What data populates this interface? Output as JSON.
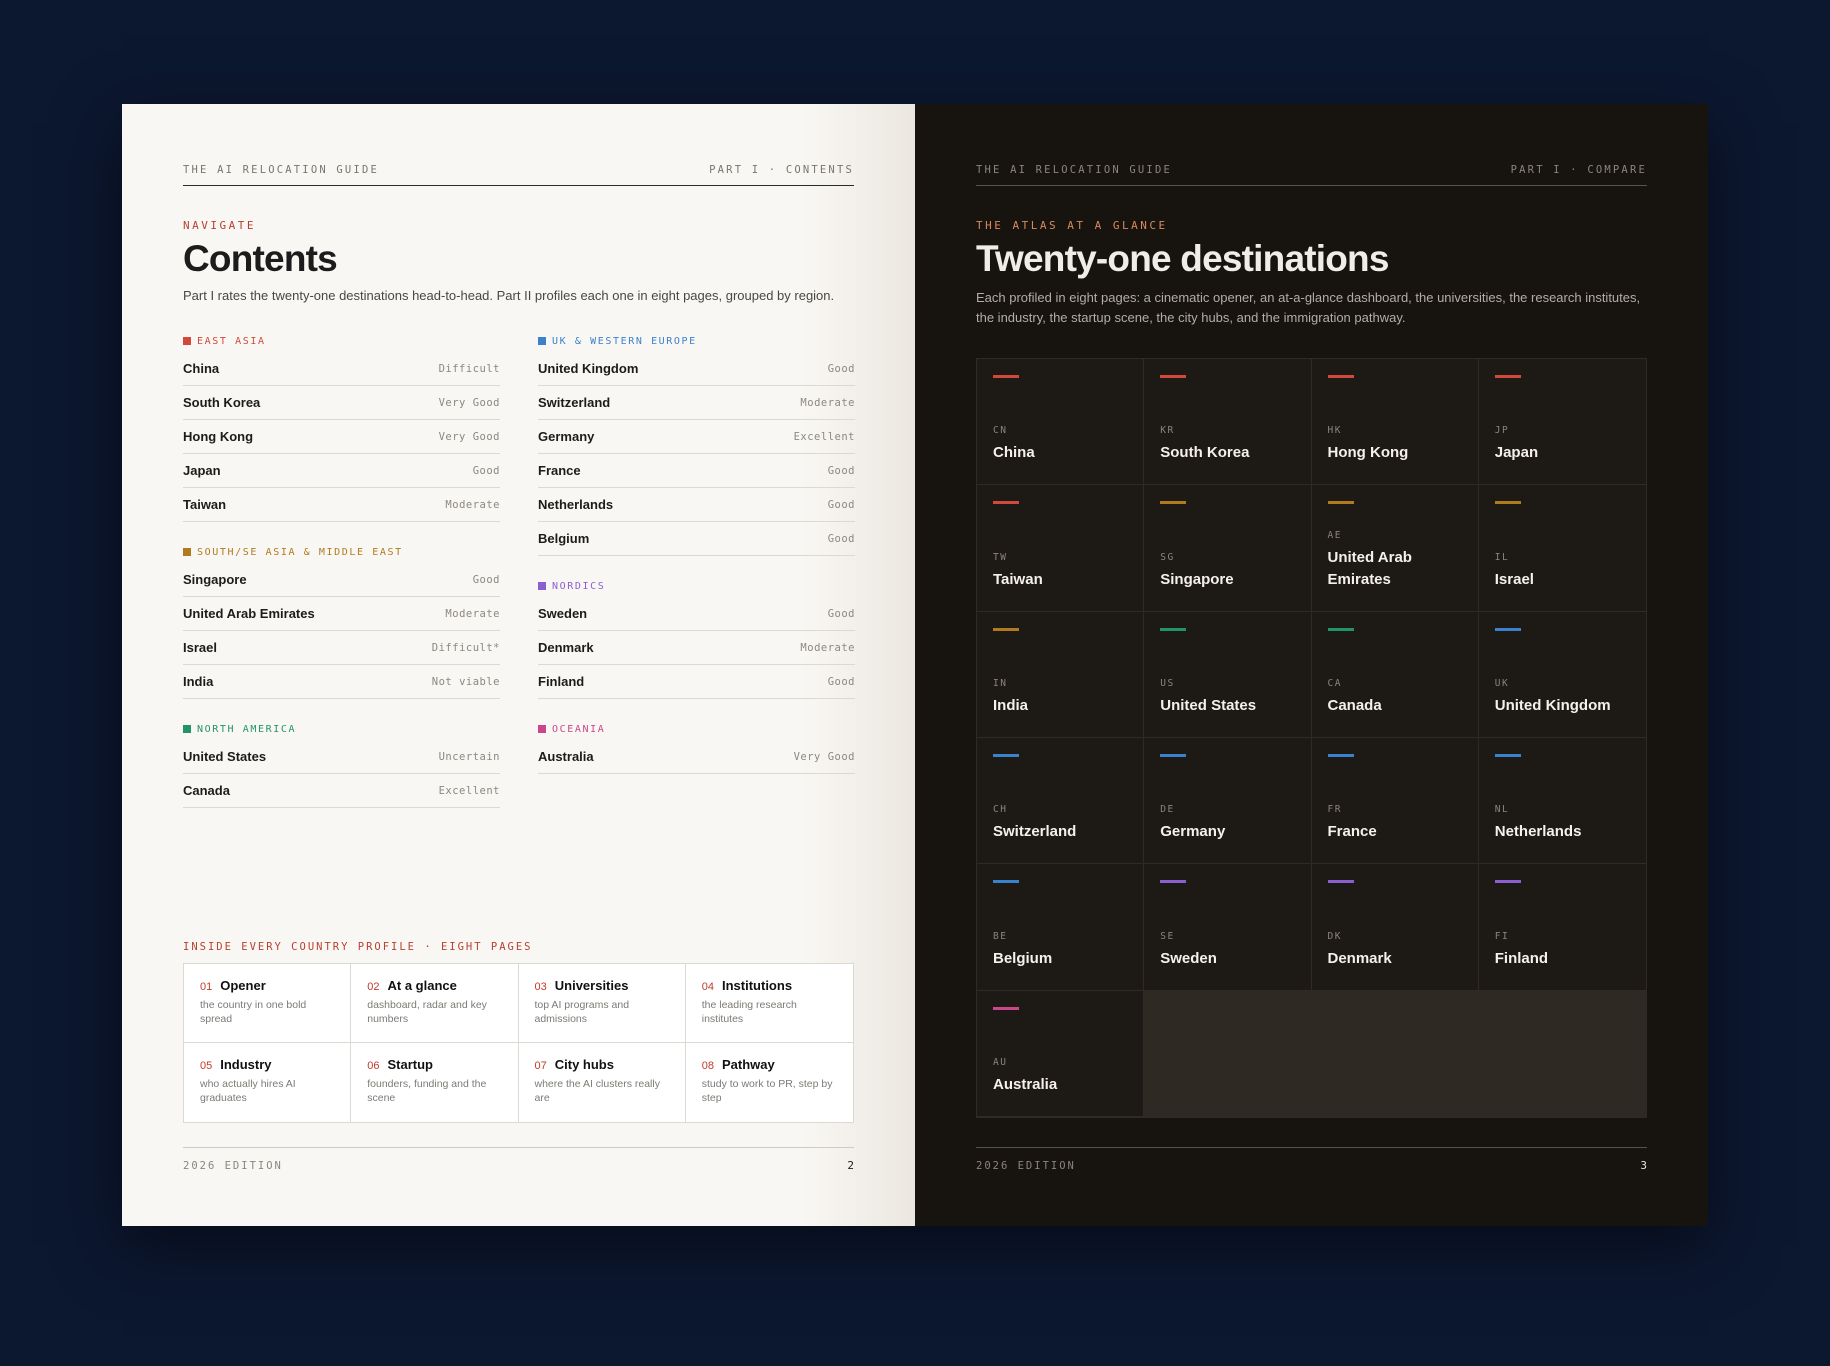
{
  "left": {
    "header": {
      "brand": "THE AI RELOCATION GUIDE",
      "part": "PART I · CONTENTS"
    },
    "kicker": "NAVIGATE",
    "title": "Contents",
    "lead": "Part I rates the twenty-one destinations head-to-head. Part II profiles each one in eight pages, grouped by region.",
    "groups": [
      {
        "name": "EAST ASIA",
        "color": "#d0493a",
        "items": [
          {
            "country": "China",
            "rating": "Difficult"
          },
          {
            "country": "South Korea",
            "rating": "Very Good"
          },
          {
            "country": "Hong Kong",
            "rating": "Very Good"
          },
          {
            "country": "Japan",
            "rating": "Good"
          },
          {
            "country": "Taiwan",
            "rating": "Moderate"
          }
        ]
      },
      {
        "name": "SOUTH/SE ASIA & MIDDLE EAST",
        "color": "#b07a1e",
        "items": [
          {
            "country": "Singapore",
            "rating": "Good"
          },
          {
            "country": "United Arab Emirates",
            "rating": "Moderate"
          },
          {
            "country": "Israel",
            "rating": "Difficult*"
          },
          {
            "country": "India",
            "rating": "Not viable"
          }
        ]
      },
      {
        "name": "NORTH AMERICA",
        "color": "#23936a",
        "items": [
          {
            "country": "United States",
            "rating": "Uncertain"
          },
          {
            "country": "Canada",
            "rating": "Excellent"
          }
        ]
      },
      {
        "name": "UK & WESTERN EUROPE",
        "color": "#3a82cc",
        "items": [
          {
            "country": "United Kingdom",
            "rating": "Good"
          },
          {
            "country": "Switzerland",
            "rating": "Moderate"
          },
          {
            "country": "Germany",
            "rating": "Excellent"
          },
          {
            "country": "France",
            "rating": "Good"
          },
          {
            "country": "Netherlands",
            "rating": "Good"
          },
          {
            "country": "Belgium",
            "rating": "Good"
          }
        ]
      },
      {
        "name": "NORDICS",
        "color": "#8a5fd0",
        "items": [
          {
            "country": "Sweden",
            "rating": "Good"
          },
          {
            "country": "Denmark",
            "rating": "Moderate"
          },
          {
            "country": "Finland",
            "rating": "Good"
          }
        ]
      },
      {
        "name": "OCEANIA",
        "color": "#c9478a",
        "items": [
          {
            "country": "Australia",
            "rating": "Very Good"
          }
        ]
      }
    ],
    "profile_label": "INSIDE EVERY COUNTRY PROFILE · EIGHT PAGES",
    "profile": [
      {
        "num": "01",
        "name": "Opener",
        "desc": "the country in one bold spread"
      },
      {
        "num": "02",
        "name": "At a glance",
        "desc": "dashboard, radar and key numbers"
      },
      {
        "num": "03",
        "name": "Universities",
        "desc": "top AI programs and admissions"
      },
      {
        "num": "04",
        "name": "Institutions",
        "desc": "the leading research institutes"
      },
      {
        "num": "05",
        "name": "Industry",
        "desc": "who actually hires AI graduates"
      },
      {
        "num": "06",
        "name": "Startup",
        "desc": "founders, funding and the scene"
      },
      {
        "num": "07",
        "name": "City hubs",
        "desc": "where the AI clusters really are"
      },
      {
        "num": "08",
        "name": "Pathway",
        "desc": "study to work to PR, step by step"
      }
    ],
    "footer": {
      "edition": "2026 EDITION",
      "page": "2"
    }
  },
  "right": {
    "header": {
      "brand": "THE AI RELOCATION GUIDE",
      "part": "PART I · COMPARE"
    },
    "kicker": "THE ATLAS AT A GLANCE",
    "title": "Twenty-one destinations",
    "lead": "Each profiled in eight pages: a cinematic opener, an at-a-glance dashboard, the universities, the research institutes, the industry, the startup scene, the city hubs, and the immigration pathway.",
    "destinations": [
      {
        "code": "CN",
        "name": "China",
        "color": "#d0493a"
      },
      {
        "code": "KR",
        "name": "South Korea",
        "color": "#d0493a"
      },
      {
        "code": "HK",
        "name": "Hong Kong",
        "color": "#d0493a"
      },
      {
        "code": "JP",
        "name": "Japan",
        "color": "#d0493a"
      },
      {
        "code": "TW",
        "name": "Taiwan",
        "color": "#d0493a"
      },
      {
        "code": "SG",
        "name": "Singapore",
        "color": "#b07a1e"
      },
      {
        "code": "AE",
        "name": "United Arab Emirates",
        "color": "#b07a1e"
      },
      {
        "code": "IL",
        "name": "Israel",
        "color": "#b07a1e"
      },
      {
        "code": "IN",
        "name": "India",
        "color": "#b07a1e"
      },
      {
        "code": "US",
        "name": "United States",
        "color": "#23936a"
      },
      {
        "code": "CA",
        "name": "Canada",
        "color": "#23936a"
      },
      {
        "code": "UK",
        "name": "United Kingdom",
        "color": "#3a82cc"
      },
      {
        "code": "CH",
        "name": "Switzerland",
        "color": "#3a82cc"
      },
      {
        "code": "DE",
        "name": "Germany",
        "color": "#3a82cc"
      },
      {
        "code": "FR",
        "name": "France",
        "color": "#3a82cc"
      },
      {
        "code": "NL",
        "name": "Netherlands",
        "color": "#3a82cc"
      },
      {
        "code": "BE",
        "name": "Belgium",
        "color": "#3a82cc"
      },
      {
        "code": "SE",
        "name": "Sweden",
        "color": "#8a5fd0"
      },
      {
        "code": "DK",
        "name": "Denmark",
        "color": "#8a5fd0"
      },
      {
        "code": "FI",
        "name": "Finland",
        "color": "#8a5fd0"
      },
      {
        "code": "AU",
        "name": "Australia",
        "color": "#c9478a"
      }
    ],
    "footer": {
      "edition": "2026 EDITION",
      "page": "3"
    }
  }
}
